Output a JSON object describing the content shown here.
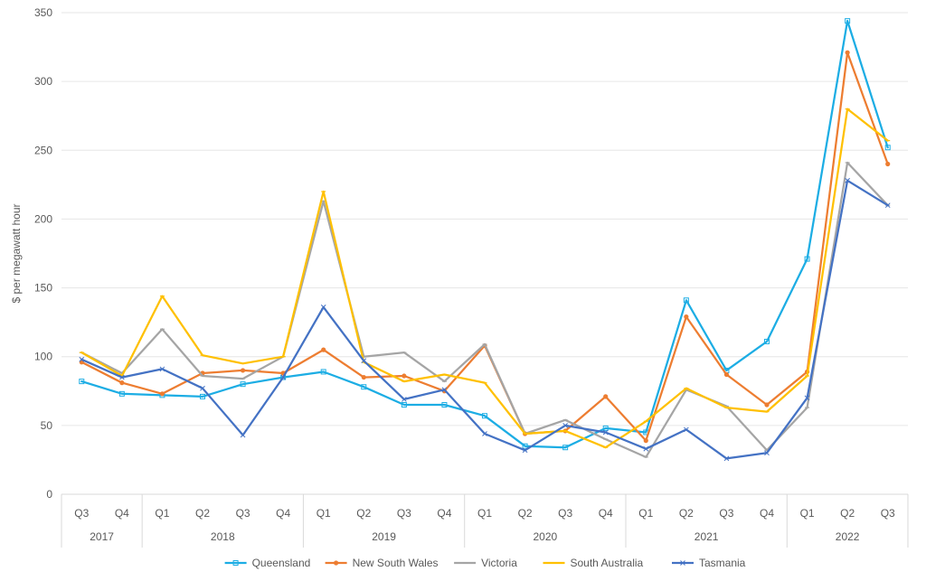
{
  "chart_data": {
    "type": "line",
    "ylabel": "$ per megawatt hour",
    "xlabel": "",
    "ylim": [
      0,
      350
    ],
    "yticks": [
      0,
      50,
      100,
      150,
      200,
      250,
      300,
      350
    ],
    "categories": [
      "Q3",
      "Q4",
      "Q1",
      "Q2",
      "Q3",
      "Q4",
      "Q1",
      "Q2",
      "Q3",
      "Q4",
      "Q1",
      "Q2",
      "Q3",
      "Q4",
      "Q1",
      "Q2",
      "Q3",
      "Q4",
      "Q1",
      "Q2",
      "Q3"
    ],
    "years": [
      {
        "label": "2017",
        "count": 2
      },
      {
        "label": "2018",
        "count": 4
      },
      {
        "label": "2019",
        "count": 4
      },
      {
        "label": "2020",
        "count": 4
      },
      {
        "label": "2021",
        "count": 4
      },
      {
        "label": "2022",
        "count": 3
      }
    ],
    "grid": true,
    "legend_position": "bottom",
    "series": [
      {
        "name": "Queensland",
        "color": "#1CADE4",
        "marker": "square",
        "values": [
          82,
          73,
          72,
          71,
          80,
          85,
          89,
          78,
          65,
          65,
          57,
          35,
          34,
          48,
          45,
          141,
          90,
          111,
          171,
          344,
          252
        ]
      },
      {
        "name": "New South Wales",
        "color": "#ED7D31",
        "marker": "circle",
        "values": [
          96,
          81,
          73,
          88,
          90,
          88,
          105,
          85,
          86,
          75,
          108,
          44,
          46,
          71,
          39,
          129,
          87,
          65,
          89,
          321,
          240
        ]
      },
      {
        "name": "Victoria",
        "color": "#A5A5A5",
        "marker": "dash",
        "values": [
          103,
          88,
          120,
          86,
          84,
          100,
          213,
          100,
          103,
          82,
          109,
          44,
          54,
          40,
          27,
          76,
          64,
          32,
          63,
          241,
          210
        ]
      },
      {
        "name": "South Australia",
        "color": "#FFC000",
        "marker": "dash",
        "values": [
          103,
          86,
          144,
          101,
          95,
          100,
          220,
          96,
          82,
          87,
          81,
          44,
          46,
          34,
          53,
          77,
          63,
          60,
          86,
          280,
          257
        ]
      },
      {
        "name": "Tasmania",
        "color": "#4472C4",
        "marker": "x",
        "values": [
          98,
          85,
          91,
          77,
          43,
          85,
          136,
          97,
          69,
          76,
          44,
          32,
          50,
          45,
          33,
          47,
          26,
          30,
          70,
          228,
          210
        ]
      }
    ]
  }
}
